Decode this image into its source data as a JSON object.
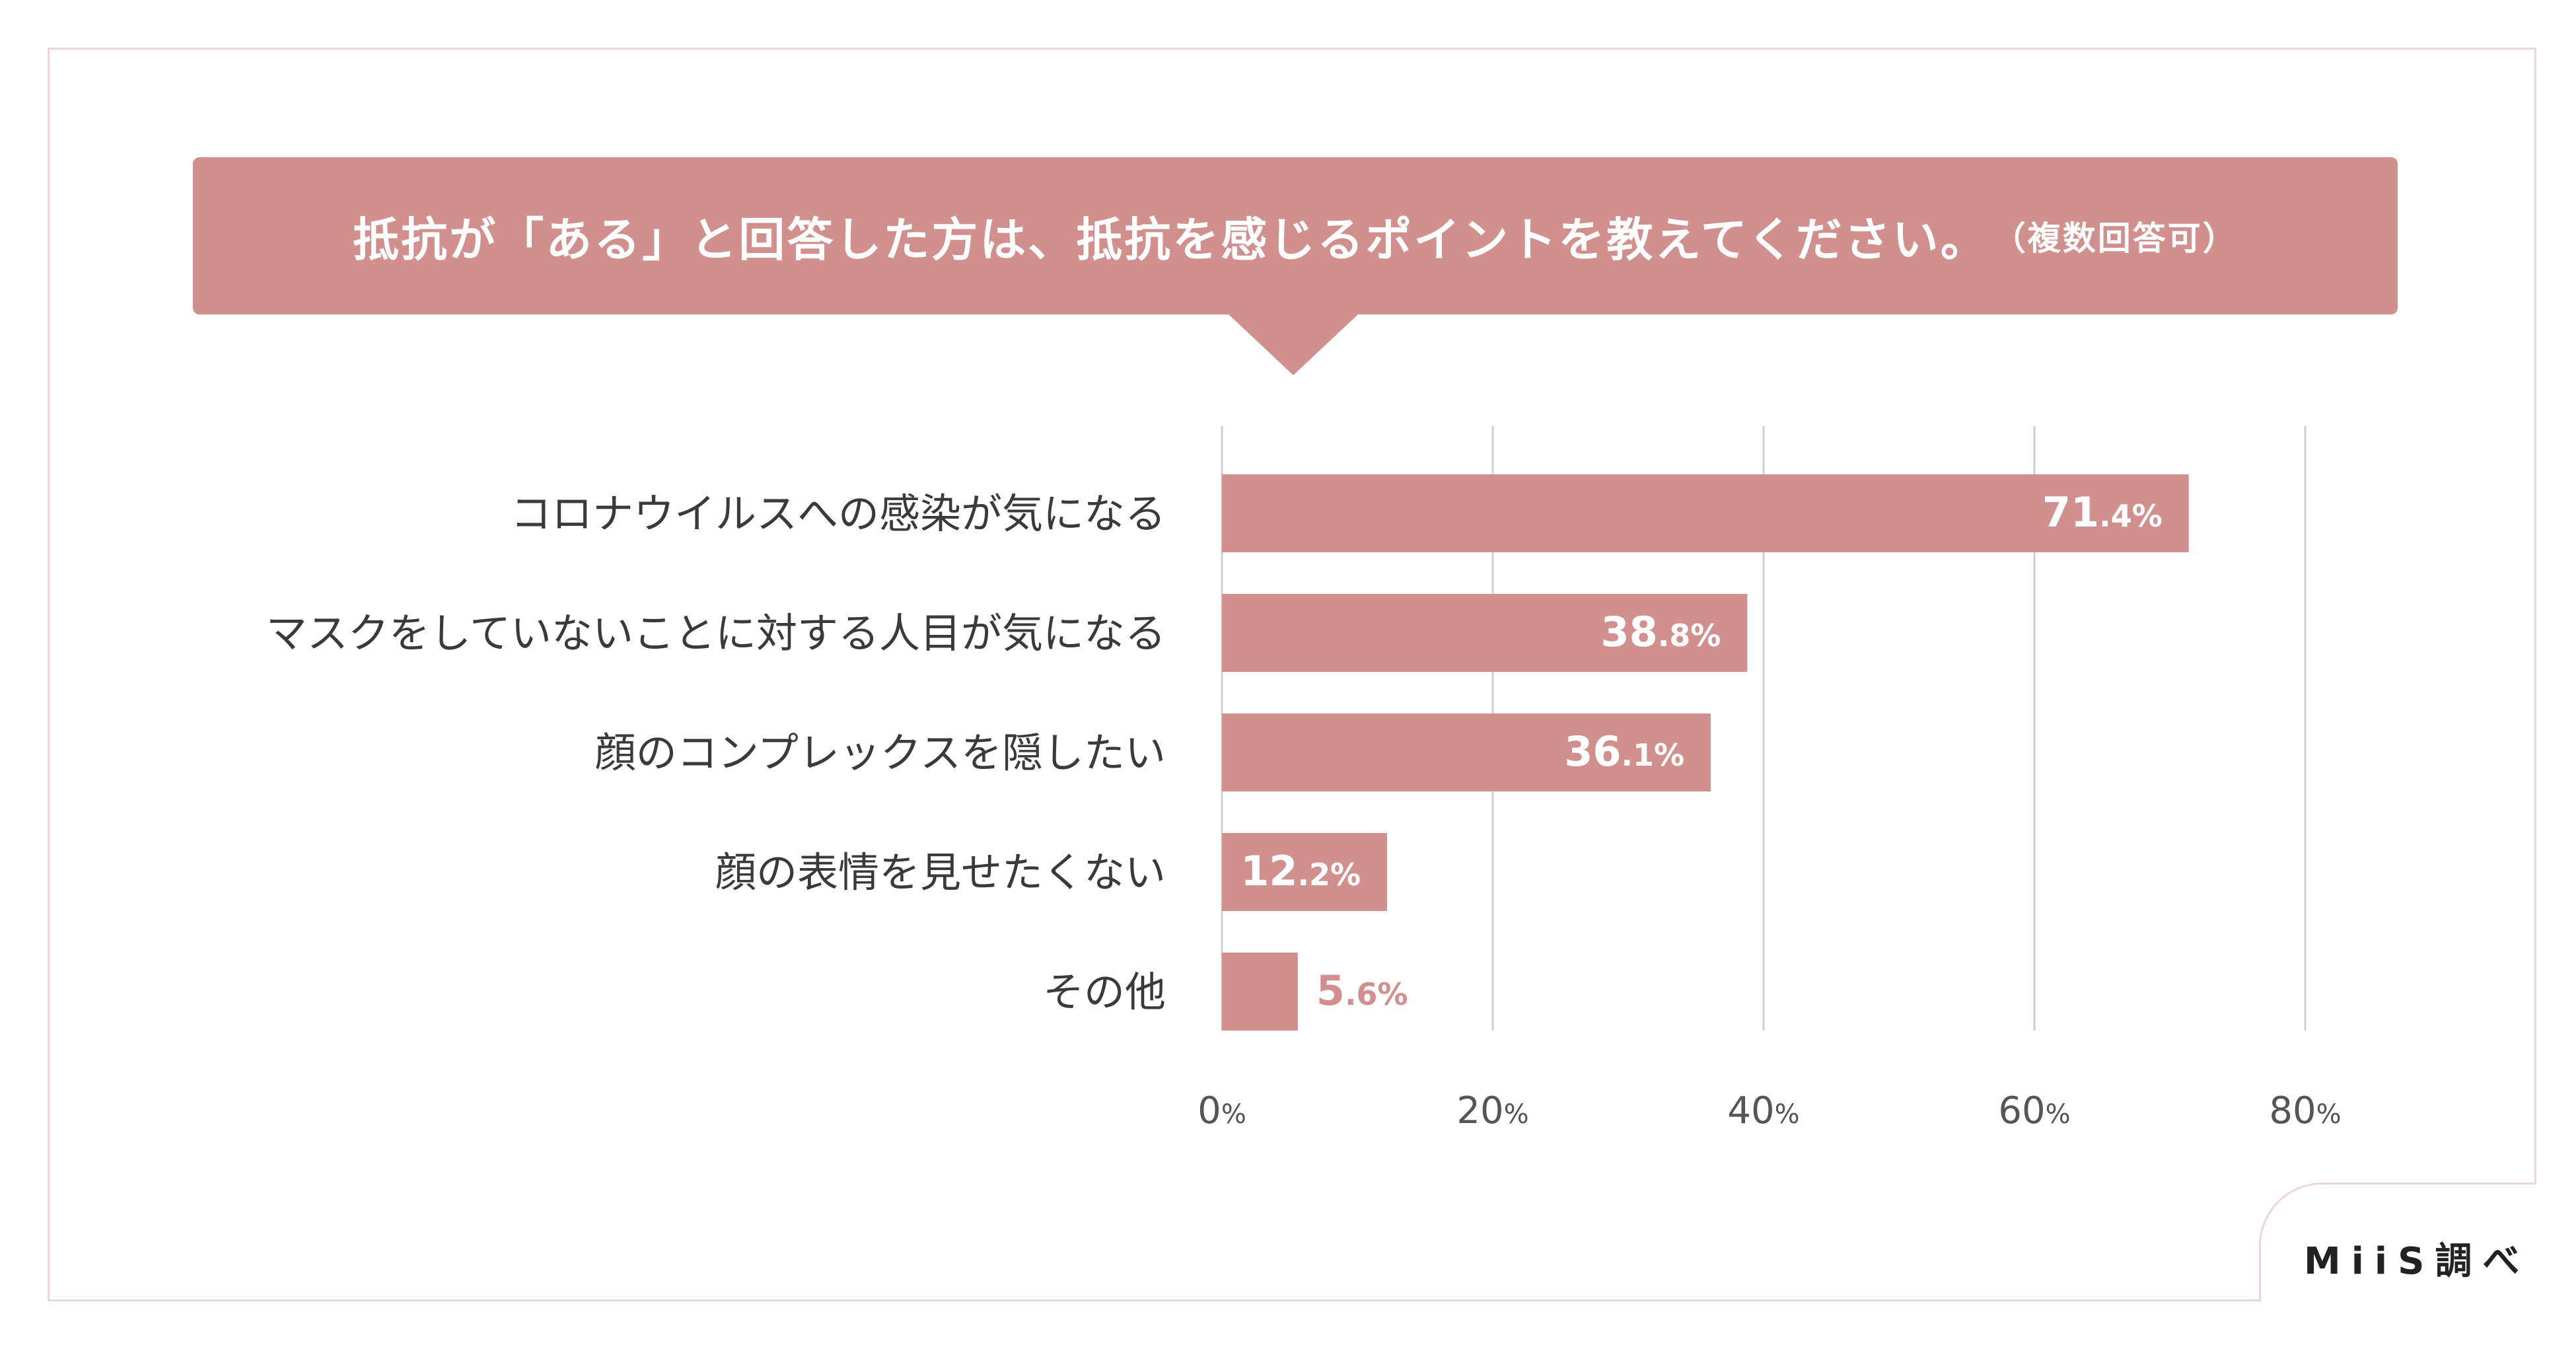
{
  "title": {
    "main": "抵抗が「ある」と回答した方は、抵抗を感じるポイントを教えてください。",
    "sub": "（複数回答可）"
  },
  "credit": "MiiS調べ",
  "colors": {
    "bar": "#d18f8e",
    "banner": "#d18f8e",
    "label_text": "#3a3a3a",
    "axis_text": "#555555",
    "grid": "#cfcfcf",
    "frame": "#efd6d6"
  },
  "chart_data": {
    "type": "bar",
    "orientation": "horizontal",
    "categories": [
      "コロナウイルスへの感染が気になる",
      "マスクをしていないことに対する人目が気になる",
      "顔のコンプレックスを隠したい",
      "顔の表情を見せたくない",
      "その他"
    ],
    "values": [
      71.4,
      38.8,
      36.1,
      12.2,
      5.6
    ],
    "xlim": [
      0,
      80
    ],
    "xticks": [
      0,
      20,
      40,
      60,
      80
    ],
    "tick_suffix": "%",
    "value_suffix": "%",
    "grid": true
  }
}
